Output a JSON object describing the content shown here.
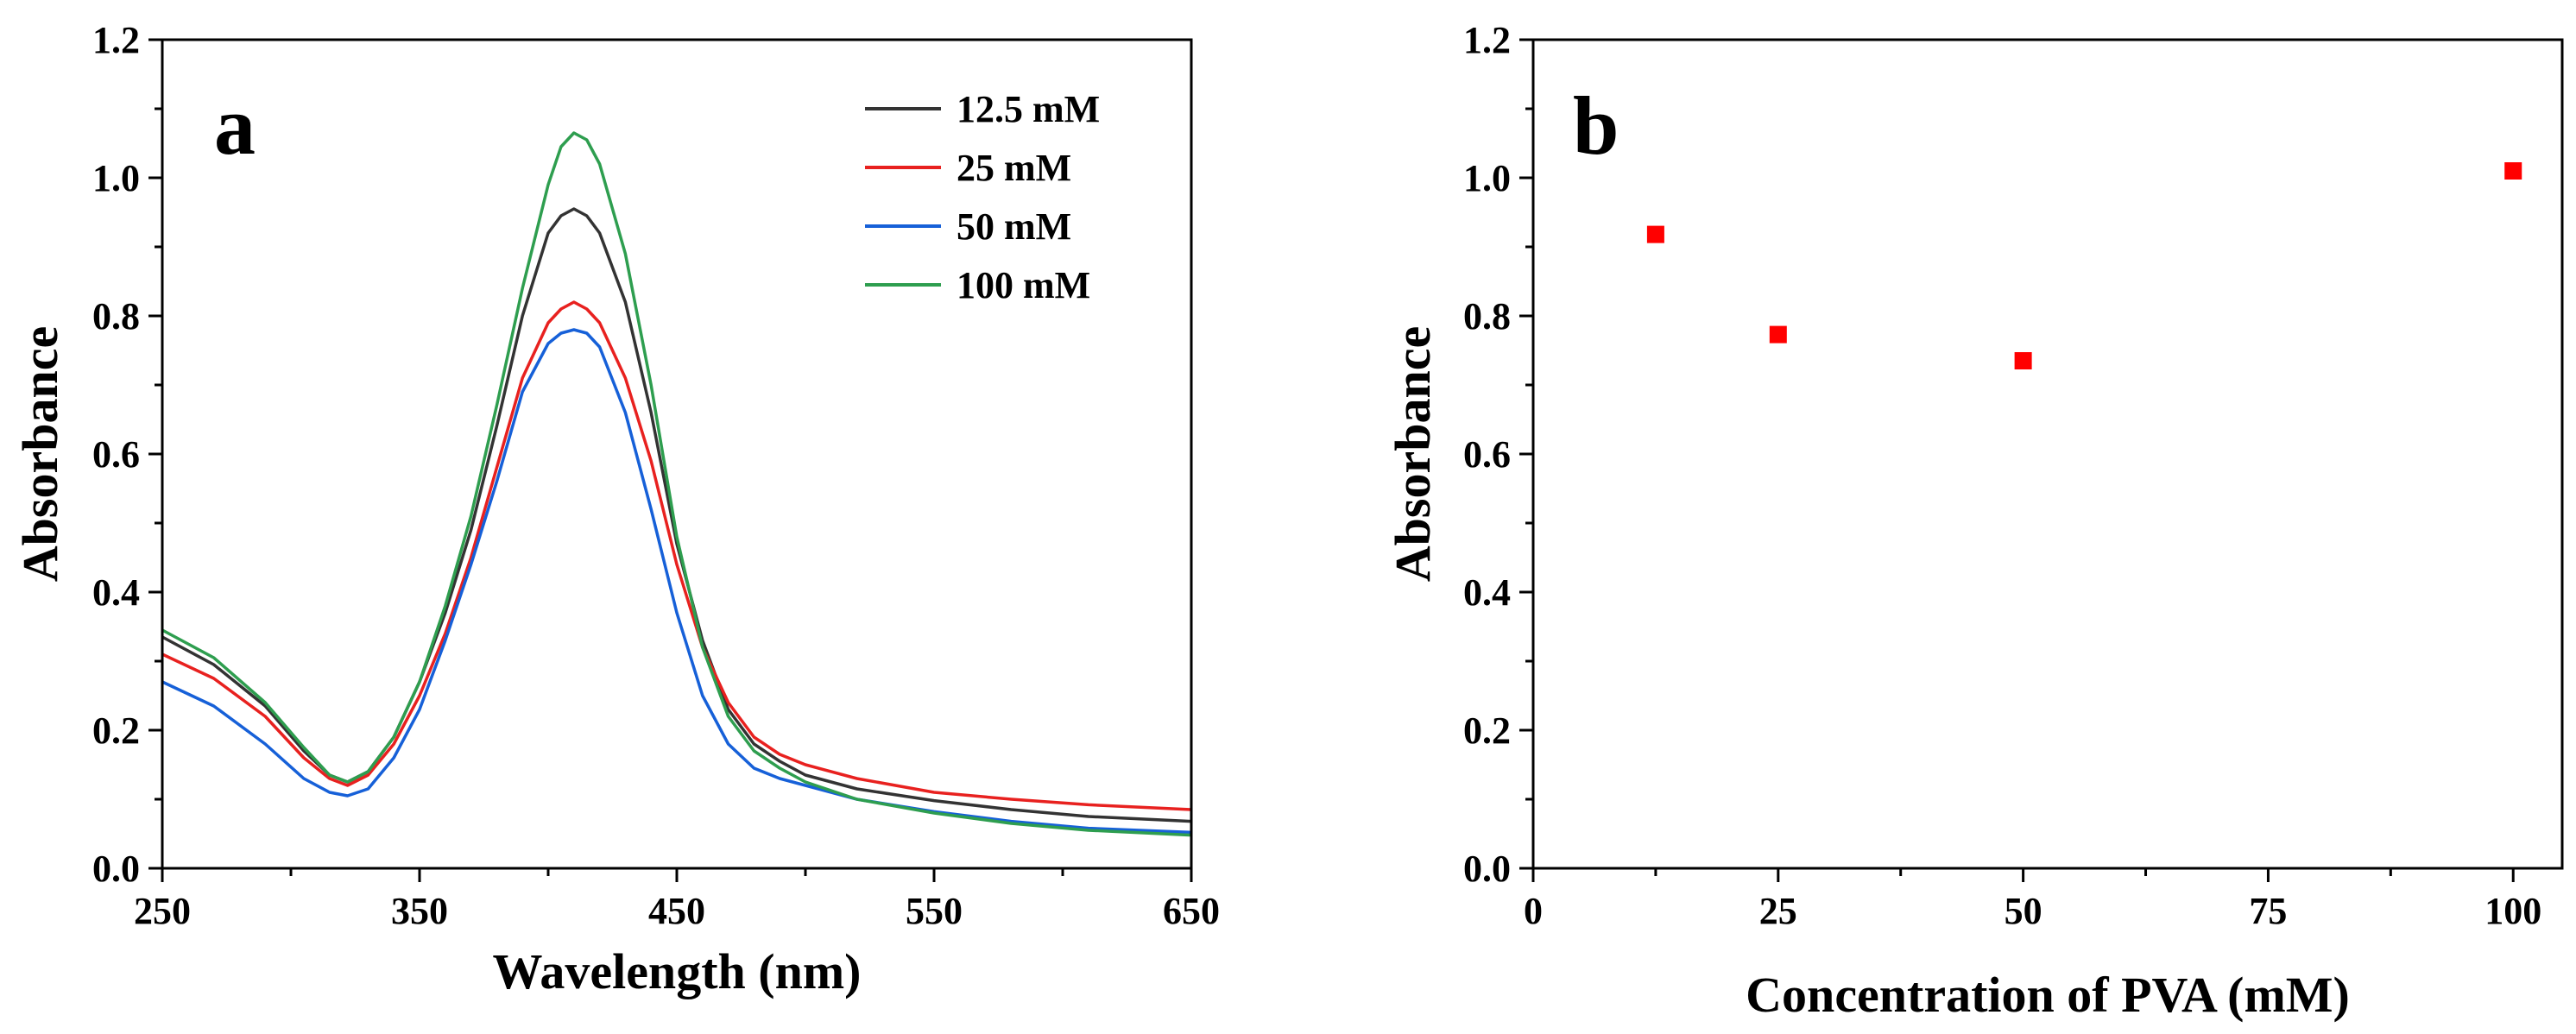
{
  "chart_data": [
    {
      "type": "line",
      "panel_label": "a",
      "xlabel": "Wavelength (nm)",
      "ylabel": "Absorbance",
      "xlim": [
        250,
        650
      ],
      "ylim": [
        0.0,
        1.2
      ],
      "xticks": [
        250,
        350,
        450,
        550,
        650
      ],
      "xtick_labels": [
        "250",
        "350",
        "450",
        "550",
        "650"
      ],
      "yticks": [
        0.0,
        0.2,
        0.4,
        0.6,
        0.8,
        1.0,
        1.2
      ],
      "ytick_labels": [
        "0.0",
        "0.2",
        "0.4",
        "0.6",
        "0.8",
        "1.0",
        "1.2"
      ],
      "legend_position": "top-right",
      "series": [
        {
          "name": "12.5 mM",
          "color": "#333333",
          "x": [
            250,
            270,
            290,
            305,
            315,
            322,
            330,
            340,
            350,
            360,
            370,
            380,
            390,
            400,
            405,
            410,
            415,
            420,
            430,
            440,
            450,
            460,
            470,
            480,
            490,
            500,
            520,
            550,
            580,
            610,
            650
          ],
          "y": [
            0.335,
            0.295,
            0.235,
            0.17,
            0.135,
            0.125,
            0.14,
            0.19,
            0.27,
            0.37,
            0.49,
            0.64,
            0.8,
            0.92,
            0.945,
            0.955,
            0.945,
            0.92,
            0.82,
            0.66,
            0.47,
            0.33,
            0.23,
            0.18,
            0.155,
            0.135,
            0.115,
            0.098,
            0.085,
            0.075,
            0.068
          ]
        },
        {
          "name": "25 mM",
          "color": "#e8211f",
          "x": [
            250,
            270,
            290,
            305,
            315,
            322,
            330,
            340,
            350,
            360,
            370,
            380,
            390,
            400,
            405,
            410,
            415,
            420,
            430,
            440,
            450,
            460,
            470,
            480,
            490,
            500,
            520,
            550,
            580,
            610,
            650
          ],
          "y": [
            0.31,
            0.275,
            0.22,
            0.16,
            0.13,
            0.12,
            0.135,
            0.18,
            0.25,
            0.34,
            0.45,
            0.58,
            0.71,
            0.79,
            0.81,
            0.82,
            0.81,
            0.79,
            0.71,
            0.59,
            0.44,
            0.32,
            0.24,
            0.19,
            0.165,
            0.15,
            0.13,
            0.11,
            0.1,
            0.092,
            0.085
          ]
        },
        {
          "name": "50 mM",
          "color": "#1660d8",
          "x": [
            250,
            270,
            290,
            305,
            315,
            322,
            330,
            340,
            350,
            360,
            370,
            380,
            390,
            400,
            405,
            410,
            415,
            420,
            430,
            440,
            450,
            460,
            470,
            480,
            490,
            500,
            520,
            550,
            580,
            610,
            650
          ],
          "y": [
            0.27,
            0.235,
            0.18,
            0.13,
            0.11,
            0.105,
            0.115,
            0.16,
            0.23,
            0.33,
            0.44,
            0.56,
            0.69,
            0.76,
            0.775,
            0.78,
            0.775,
            0.755,
            0.66,
            0.52,
            0.37,
            0.25,
            0.18,
            0.145,
            0.13,
            0.12,
            0.1,
            0.082,
            0.068,
            0.058,
            0.052
          ]
        },
        {
          "name": "100 mM",
          "color": "#2e9e4f",
          "x": [
            250,
            270,
            290,
            305,
            315,
            322,
            330,
            340,
            350,
            360,
            370,
            380,
            390,
            400,
            405,
            410,
            415,
            420,
            430,
            440,
            450,
            460,
            470,
            480,
            490,
            500,
            520,
            550,
            580,
            610,
            650
          ],
          "y": [
            0.345,
            0.305,
            0.24,
            0.175,
            0.135,
            0.125,
            0.14,
            0.19,
            0.27,
            0.38,
            0.51,
            0.67,
            0.84,
            0.99,
            1.045,
            1.065,
            1.055,
            1.02,
            0.89,
            0.7,
            0.48,
            0.32,
            0.22,
            0.17,
            0.145,
            0.125,
            0.1,
            0.08,
            0.065,
            0.055,
            0.048
          ]
        }
      ]
    },
    {
      "type": "scatter",
      "panel_label": "b",
      "xlabel": "Concentration of PVA (mM)",
      "ylabel": "Absorbance",
      "xlim": [
        0,
        105
      ],
      "ylim": [
        0.0,
        1.2
      ],
      "xticks": [
        0,
        25,
        50,
        75,
        100
      ],
      "xtick_labels": [
        "0",
        "25",
        "50",
        "75",
        "100"
      ],
      "yticks": [
        0.0,
        0.2,
        0.4,
        0.6,
        0.8,
        1.0,
        1.2
      ],
      "ytick_labels": [
        "0.0",
        "0.2",
        "0.4",
        "0.6",
        "0.8",
        "1.0",
        "1.2"
      ],
      "series": [
        {
          "color": "#ff0000",
          "marker": "square",
          "x": [
            12.5,
            25,
            50,
            100
          ],
          "y": [
            0.918,
            0.773,
            0.735,
            1.01
          ]
        }
      ]
    }
  ]
}
